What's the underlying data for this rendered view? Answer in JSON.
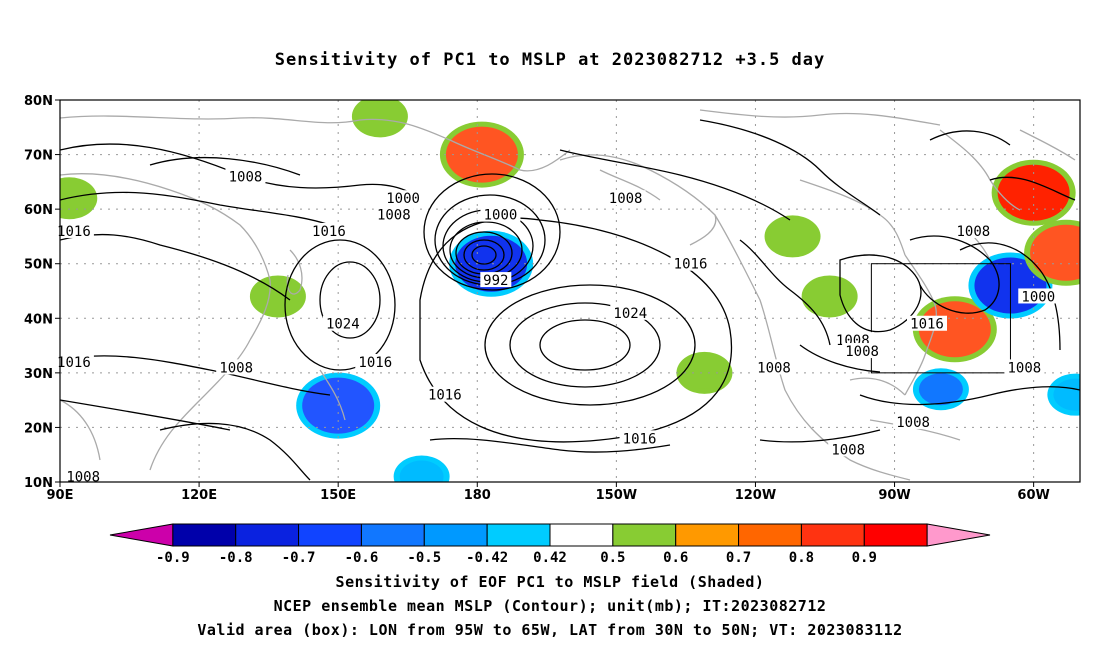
{
  "title": "Sensitivity of PC1 to MSLP at 2023082712 +3.5 day",
  "map": {
    "lat_labels": [
      "80N",
      "70N",
      "60N",
      "50N",
      "40N",
      "30N",
      "20N",
      "10N"
    ],
    "lon_labels": [
      "90E",
      "120E",
      "150E",
      "180",
      "150W",
      "120W",
      "90W",
      "60W"
    ],
    "extent": {
      "lon_min": 90,
      "lon_max": 310,
      "lat_min": 10,
      "lat_max": 80
    },
    "grid": "dotted, every 10° lat / 30° lon",
    "contour_labels": [
      {
        "text": "1008",
        "lon": 130,
        "lat": 66
      },
      {
        "text": "1000",
        "lon": 164,
        "lat": 62
      },
      {
        "text": "1008",
        "lon": 162,
        "lat": 59
      },
      {
        "text": "1016",
        "lon": 148,
        "lat": 56
      },
      {
        "text": "1000",
        "lon": 185,
        "lat": 59
      },
      {
        "text": "992",
        "lon": 184,
        "lat": 47
      },
      {
        "text": "1008",
        "lon": 212,
        "lat": 62
      },
      {
        "text": "1016",
        "lon": 226,
        "lat": 50
      },
      {
        "text": "1024",
        "lon": 213,
        "lat": 41
      },
      {
        "text": "1016",
        "lon": 93,
        "lat": 56
      },
      {
        "text": "1024",
        "lon": 151,
        "lat": 39
      },
      {
        "text": "1016",
        "lon": 158,
        "lat": 32
      },
      {
        "text": "1008",
        "lon": 128,
        "lat": 31
      },
      {
        "text": "1016",
        "lon": 93,
        "lat": 32
      },
      {
        "text": "1016",
        "lon": 173,
        "lat": 26
      },
      {
        "text": "1016",
        "lon": 215,
        "lat": 18
      },
      {
        "text": "1008",
        "lon": 244,
        "lat": 31
      },
      {
        "text": "1008",
        "lon": 261,
        "lat": 36
      },
      {
        "text": "1008",
        "lon": 263,
        "lat": 34
      },
      {
        "text": "1016",
        "lon": 277,
        "lat": 39
      },
      {
        "text": "1000",
        "lon": 301,
        "lat": 44
      },
      {
        "text": "1008",
        "lon": 287,
        "lat": 56
      },
      {
        "text": "1008",
        "lon": 298,
        "lat": 31
      },
      {
        "text": "1008",
        "lon": 274,
        "lat": 21
      },
      {
        "text": "1008",
        "lon": 260,
        "lat": 16
      },
      {
        "text": "1008",
        "lon": 95,
        "lat": 11
      }
    ],
    "valid_box": {
      "lon_west": 265,
      "lon_east": 295,
      "lat_south": 30,
      "lat_north": 50
    },
    "shaded_regions": [
      {
        "value": 0.5,
        "lon": 92,
        "lat": 62,
        "color": "#88cc33"
      },
      {
        "value": 0.7,
        "lon": 181,
        "lat": 70,
        "color": "#ff5522"
      },
      {
        "value": 0.5,
        "lon": 159,
        "lat": 77,
        "color": "#88cc33"
      },
      {
        "value": 0.5,
        "lon": 137,
        "lat": 44,
        "color": "#88cc33"
      },
      {
        "value": -0.7,
        "lon": 150,
        "lat": 24,
        "color": "#2255ff"
      },
      {
        "value": -0.42,
        "lon": 168,
        "lat": 11,
        "color": "#00bbff"
      },
      {
        "value": -0.8,
        "lon": 183,
        "lat": 50,
        "color": "#1133ee"
      },
      {
        "value": 0.5,
        "lon": 229,
        "lat": 30,
        "color": "#88cc33"
      },
      {
        "value": 0.5,
        "lon": 248,
        "lat": 55,
        "color": "#88cc33"
      },
      {
        "value": 0.5,
        "lon": 256,
        "lat": 44,
        "color": "#88cc33"
      },
      {
        "value": 0.7,
        "lon": 283,
        "lat": 38,
        "color": "#ff5522"
      },
      {
        "value": -0.6,
        "lon": 280,
        "lat": 27,
        "color": "#1177ff"
      },
      {
        "value": -0.8,
        "lon": 295,
        "lat": 46,
        "color": "#1133ee"
      },
      {
        "value": 0.8,
        "lon": 300,
        "lat": 63,
        "color": "#ff2200"
      },
      {
        "value": 0.7,
        "lon": 307,
        "lat": 52,
        "color": "#ff5522"
      },
      {
        "value": -0.5,
        "lon": 309,
        "lat": 26,
        "color": "#00bbff"
      }
    ]
  },
  "colorbar": {
    "labels": [
      "-0.9",
      "-0.8",
      "-0.7",
      "-0.6",
      "-0.5",
      "-0.42",
      "0.42",
      "0.5",
      "0.6",
      "0.7",
      "0.8",
      "0.9"
    ],
    "colors": [
      "#cc00aa",
      "#0000aa",
      "#0a22e0",
      "#1144ff",
      "#1177ff",
      "#0099ff",
      "#00ccff",
      "#ffffff",
      "#88cc33",
      "#ff9900",
      "#ff6600",
      "#ff3311",
      "#ff0000",
      "#ff99cc"
    ]
  },
  "caption": {
    "line1": "Sensitivity of EOF PC1 to MSLP field (Shaded)",
    "line2": "NCEP ensemble mean MSLP (Contour); unit(mb); IT:2023082712",
    "line3": "Valid area (box): LON from 95W to 65W, LAT from 30N to 50N; VT: 2023083112"
  }
}
